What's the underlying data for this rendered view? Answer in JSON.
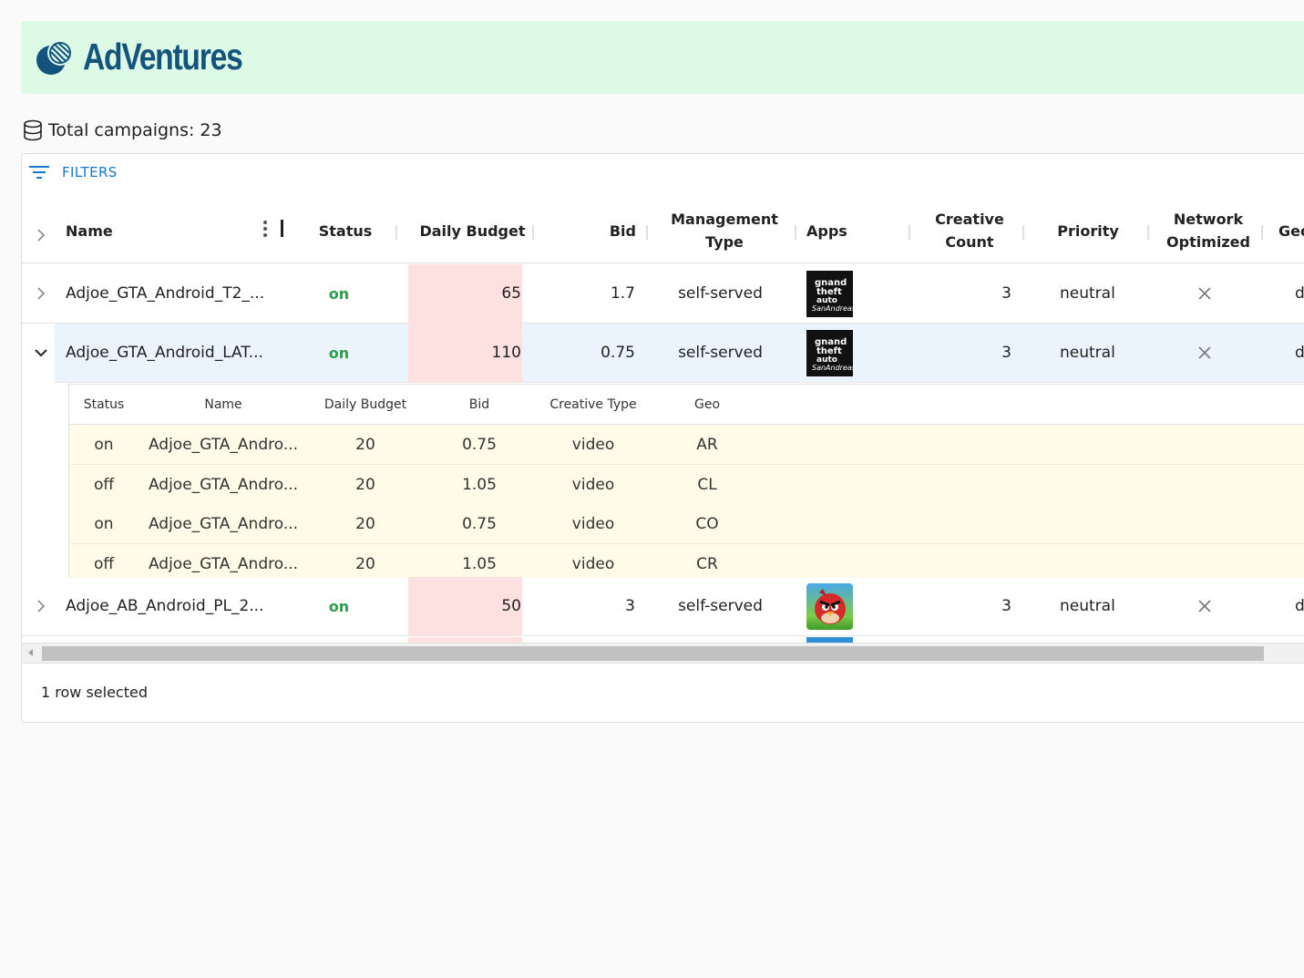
{
  "brand": {
    "name": "AdVentures",
    "color": "#14547c",
    "header_bg": "#dcfae6"
  },
  "summary": {
    "total_label": "Total campaigns: 23"
  },
  "toolbar": {
    "filters_label": "FILTERS"
  },
  "columns": {
    "name": "Name",
    "status": "Status",
    "daily_budget": "Daily Budget",
    "bid": "Bid",
    "management_type_1": "Management",
    "management_type_2": "Type",
    "apps": "Apps",
    "creative_count_1": "Creative",
    "creative_count_2": "Count",
    "priority": "Priority",
    "network_optimized_1": "Network",
    "network_optimized_2": "Optimized",
    "geo": "Geo"
  },
  "rows": [
    {
      "name": "Adjoe_GTA_Android_T2_...",
      "status": "on",
      "daily_budget": "65",
      "bid": "1.7",
      "management_type": "self-served",
      "app_icon": "gta-app-icon",
      "creative_count": "3",
      "priority": "neutral",
      "network_optimized": "close-icon",
      "geo": "d"
    },
    {
      "name": "Adjoe_GTA_Android_LAT...",
      "status": "on",
      "daily_budget": "110",
      "bid": "0.75",
      "management_type": "self-served",
      "app_icon": "gta-app-icon",
      "creative_count": "3",
      "priority": "neutral",
      "network_optimized": "close-icon",
      "geo": "d"
    },
    {
      "name": "Adjoe_AB_Android_PL_2...",
      "status": "on",
      "daily_budget": "50",
      "bid": "3",
      "management_type": "self-served",
      "app_icon": "angry-birds-app-icon",
      "creative_count": "3",
      "priority": "neutral",
      "network_optimized": "close-icon",
      "geo": "d"
    }
  ],
  "detail": {
    "columns": {
      "status": "Status",
      "name": "Name",
      "daily_budget": "Daily Budget",
      "bid": "Bid",
      "creative_type": "Creative Type",
      "geo": "Geo"
    },
    "rows": [
      {
        "status": "on",
        "name": "Adjoe_GTA_Andro...",
        "daily_budget": "20",
        "bid": "0.75",
        "creative_type": "video",
        "geo": "AR"
      },
      {
        "status": "off",
        "name": "Adjoe_GTA_Andro...",
        "daily_budget": "20",
        "bid": "1.05",
        "creative_type": "video",
        "geo": "CL"
      },
      {
        "status": "on",
        "name": "Adjoe_GTA_Andro...",
        "daily_budget": "20",
        "bid": "0.75",
        "creative_type": "video",
        "geo": "CO"
      },
      {
        "status": "off",
        "name": "Adjoe_GTA_Andro...",
        "daily_budget": "20",
        "bid": "1.05",
        "creative_type": "video",
        "geo": "CR"
      }
    ]
  },
  "footer": {
    "selection_label": "1 row selected"
  },
  "colors": {
    "status_on": "#2e9d4b",
    "budget_highlight": "#fde0e0",
    "selected_row": "#ebf3fd",
    "detail_row": "#fefbe8",
    "link_blue": "#1976d2"
  }
}
